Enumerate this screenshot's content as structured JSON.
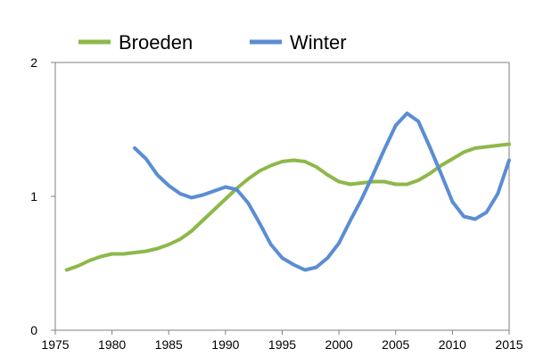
{
  "chart_data": {
    "type": "line",
    "title": "",
    "xlabel": "",
    "ylabel": "",
    "xlim": [
      1975,
      2015
    ],
    "ylim": [
      0,
      2
    ],
    "x_ticks": [
      1975,
      1980,
      1985,
      1990,
      1995,
      2000,
      2005,
      2010,
      2015
    ],
    "y_ticks": [
      0,
      1,
      2
    ],
    "grid": false,
    "legend_position": "top",
    "series": [
      {
        "name": "Broeden",
        "color": "#8DB84A",
        "x": [
          1976,
          1977,
          1978,
          1979,
          1980,
          1981,
          1982,
          1983,
          1984,
          1985,
          1986,
          1987,
          1988,
          1989,
          1990,
          1991,
          1992,
          1993,
          1994,
          1995,
          1996,
          1997,
          1998,
          1999,
          2000,
          2001,
          2002,
          2003,
          2004,
          2005,
          2006,
          2007,
          2008,
          2009,
          2010,
          2011,
          2012,
          2013,
          2014,
          2015
        ],
        "values": [
          0.45,
          0.48,
          0.52,
          0.55,
          0.57,
          0.57,
          0.58,
          0.59,
          0.61,
          0.64,
          0.68,
          0.74,
          0.82,
          0.9,
          0.98,
          1.06,
          1.13,
          1.19,
          1.23,
          1.26,
          1.27,
          1.26,
          1.22,
          1.16,
          1.11,
          1.09,
          1.1,
          1.11,
          1.11,
          1.09,
          1.09,
          1.12,
          1.17,
          1.23,
          1.28,
          1.33,
          1.36,
          1.37,
          1.38,
          1.39
        ]
      },
      {
        "name": "Winter",
        "color": "#5B8DD3",
        "x": [
          1982,
          1983,
          1984,
          1985,
          1986,
          1987,
          1988,
          1989,
          1990,
          1991,
          1992,
          1993,
          1994,
          1995,
          1996,
          1997,
          1998,
          1999,
          2000,
          2001,
          2002,
          2003,
          2004,
          2005,
          2006,
          2007,
          2008,
          2009,
          2010,
          2011,
          2012,
          2013,
          2014,
          2015
        ],
        "values": [
          1.36,
          1.28,
          1.16,
          1.08,
          1.02,
          0.99,
          1.01,
          1.04,
          1.07,
          1.05,
          0.95,
          0.8,
          0.64,
          0.54,
          0.49,
          0.45,
          0.47,
          0.54,
          0.65,
          0.82,
          0.98,
          1.16,
          1.35,
          1.53,
          1.62,
          1.56,
          1.37,
          1.17,
          0.96,
          0.85,
          0.83,
          0.88,
          1.02,
          1.27
        ]
      }
    ]
  }
}
